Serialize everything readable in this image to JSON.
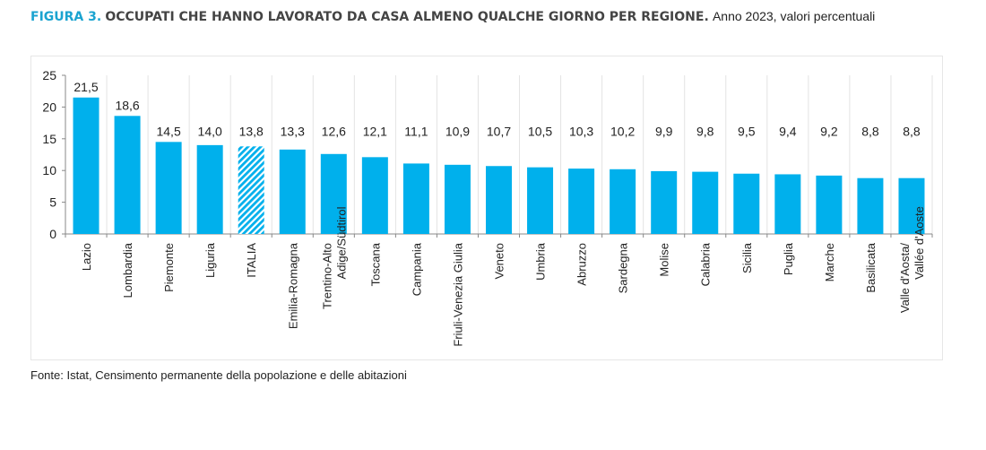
{
  "title": {
    "figure": "FIGURA 3.",
    "heading": "OCCUPATI CHE HANNO LAVORATO DA CASA ALMENO QUALCHE GIORNO PER REGIONE.",
    "subtitle": "Anno 2023, valori percentuali"
  },
  "source": "Fonte: Istat, Censimento permanente della popolazione e delle abitazioni",
  "colors": {
    "bar": "#00b0ec",
    "italia_hatch": "#00b0ec",
    "title_accent": "#1aa3d0"
  },
  "chart_data": {
    "type": "bar",
    "title": "",
    "xlabel": "",
    "ylabel": "",
    "ylim": [
      0,
      25
    ],
    "yticks": [
      0,
      5,
      10,
      15,
      20,
      25
    ],
    "grid": "vertical category separators",
    "highlight": {
      "category": "ITALIA",
      "style": "hatched"
    },
    "categories": [
      "Lazio",
      "Lombardia",
      "Piemonte",
      "Liguria",
      "ITALIA",
      "Emilia-Romagna",
      "Trentino-Alto Adige/Südtirol",
      "Toscana",
      "Campania",
      "Friuli-Venezia Giulia",
      "Veneto",
      "Umbria",
      "Abruzzo",
      "Sardegna",
      "Molise",
      "Calabria",
      "Sicilia",
      "Puglia",
      "Marche",
      "Basilicata",
      "Valle d'Aosta/Vallée d'Aoste"
    ],
    "values": [
      21.5,
      18.6,
      14.5,
      14.0,
      13.8,
      13.3,
      12.6,
      12.1,
      11.1,
      10.9,
      10.7,
      10.5,
      10.3,
      10.2,
      9.9,
      9.8,
      9.5,
      9.4,
      9.2,
      8.8,
      8.8
    ],
    "labels": [
      "21,5",
      "18,6",
      "14,5",
      "14,0",
      "13,8",
      "13,3",
      "12,6",
      "12,1",
      "11,1",
      "10,9",
      "10,7",
      "10,5",
      "10,3",
      "10,2",
      "9,9",
      "9,8",
      "9,5",
      "9,4",
      "9,2",
      "8,8",
      "8,8"
    ]
  }
}
